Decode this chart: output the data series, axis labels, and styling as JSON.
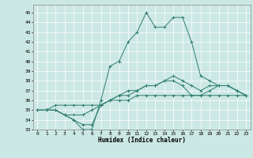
{
  "xlabel": "Humidex (Indice chaleur)",
  "bg_color": "#cce8e4",
  "line_color": "#2e7d6e",
  "xlim": [
    -0.5,
    23.5
  ],
  "ylim": [
    33,
    45.8
  ],
  "xticks": [
    0,
    1,
    2,
    3,
    4,
    5,
    6,
    7,
    8,
    9,
    10,
    11,
    12,
    13,
    14,
    15,
    16,
    17,
    18,
    19,
    20,
    21,
    22,
    23
  ],
  "yticks": [
    33,
    34,
    35,
    36,
    37,
    38,
    39,
    40,
    41,
    42,
    43,
    44,
    45
  ],
  "series": [
    [
      35.0,
      35.0,
      35.0,
      34.5,
      34.0,
      33.0,
      33.0,
      36.0,
      39.5,
      40.0,
      42.0,
      43.0,
      45.0,
      43.5,
      43.5,
      44.5,
      44.5,
      42.0,
      38.5,
      38.0,
      37.5,
      37.5,
      37.0,
      36.5
    ],
    [
      35.0,
      35.0,
      35.0,
      34.5,
      34.0,
      33.5,
      33.5,
      35.5,
      36.0,
      36.5,
      36.5,
      37.0,
      37.5,
      37.5,
      38.0,
      38.0,
      37.5,
      36.5,
      36.5,
      37.0,
      37.5,
      37.5,
      37.0,
      36.5
    ],
    [
      35.0,
      35.0,
      35.0,
      34.5,
      34.5,
      34.5,
      35.0,
      35.5,
      36.0,
      36.5,
      37.0,
      37.0,
      37.5,
      37.5,
      38.0,
      38.5,
      38.0,
      37.5,
      37.0,
      37.5,
      37.5,
      37.5,
      37.0,
      36.5
    ],
    [
      35.0,
      35.0,
      35.5,
      35.5,
      35.5,
      35.5,
      35.5,
      35.5,
      36.0,
      36.0,
      36.0,
      36.5,
      36.5,
      36.5,
      36.5,
      36.5,
      36.5,
      36.5,
      36.5,
      36.5,
      36.5,
      36.5,
      36.5,
      36.5
    ]
  ]
}
